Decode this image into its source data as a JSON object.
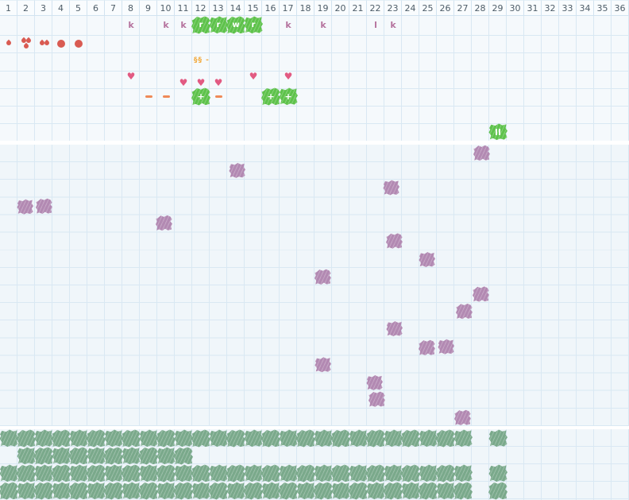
{
  "colors": {
    "grid_line": "#d9e8f3",
    "section_bg": "#f0f6fa",
    "header_text": "#4e5d68",
    "bright_green": "#5ec24b",
    "sage_green": "#7aa98b",
    "creature_purple": "#b289b2",
    "letter_mauve": "#b5739e",
    "blood_red": "#d95b52",
    "heart_pink": "#e25a82",
    "currency_orange": "#f2a93b",
    "minus_orange": "#ef8a58"
  },
  "header": {
    "columns": [
      "1",
      "2",
      "3",
      "4",
      "5",
      "6",
      "7",
      "8",
      "9",
      "10",
      "11",
      "12",
      "13",
      "14",
      "15",
      "16",
      "17",
      "18",
      "19",
      "20",
      "21",
      "22",
      "23",
      "24",
      "25",
      "26",
      "27",
      "28",
      "29",
      "30",
      "31",
      "32",
      "33",
      "34",
      "35",
      "36"
    ]
  },
  "status_rows": {
    "letters": [
      {
        "col": 8,
        "char": "k"
      },
      {
        "col": 10,
        "char": "k"
      },
      {
        "col": 11,
        "char": "k"
      },
      {
        "col": 17,
        "char": "k"
      },
      {
        "col": 19,
        "char": "k"
      },
      {
        "col": 22,
        "char": "l"
      },
      {
        "col": 23,
        "char": "k"
      }
    ],
    "units": [
      {
        "col": 12,
        "letter": "r"
      },
      {
        "col": 13,
        "letter": "r"
      },
      {
        "col": 14,
        "letter": "w"
      },
      {
        "col": 15,
        "letter": "r"
      }
    ],
    "drops": [
      {
        "col": 1,
        "type": "drop-single"
      },
      {
        "col": 2,
        "type": "drop-triple"
      },
      {
        "col": 3,
        "type": "drop-double"
      },
      {
        "col": 4,
        "type": "dot"
      },
      {
        "col": 5,
        "type": "dot"
      }
    ],
    "currency": {
      "col": 12,
      "text": "§§ -"
    },
    "hearts": [
      {
        "col": 8,
        "raised": true
      },
      {
        "col": 11,
        "raised": false
      },
      {
        "col": 12,
        "raised": false
      },
      {
        "col": 13,
        "raised": false
      },
      {
        "col": 15,
        "raised": true
      },
      {
        "col": 17,
        "raised": true
      }
    ],
    "modifiers": [
      {
        "col": 9,
        "type": "minus"
      },
      {
        "col": 10,
        "type": "minus"
      },
      {
        "col": 12,
        "type": "plus"
      },
      {
        "col": 13,
        "type": "minus"
      },
      {
        "col": 16,
        "type": "plus"
      },
      {
        "col": 17,
        "type": "plus"
      }
    ],
    "pause_button": {
      "col": 29,
      "glyph": "II"
    }
  },
  "field": {
    "creatures": [
      {
        "col": 28,
        "row": 1
      },
      {
        "col": 14,
        "row": 2
      },
      {
        "col": 23,
        "row": 3
      },
      {
        "col": 2,
        "row": 4
      },
      {
        "col": 3,
        "row": 4
      },
      {
        "col": 10,
        "row": 5
      },
      {
        "col": 23,
        "row": 6
      },
      {
        "col": 25,
        "row": 7
      },
      {
        "col": 19,
        "row": 8
      },
      {
        "col": 28,
        "row": 9
      },
      {
        "col": 27,
        "row": 10
      },
      {
        "col": 23,
        "row": 11
      },
      {
        "col": 25,
        "row": 12
      },
      {
        "col": 26,
        "row": 12
      },
      {
        "col": 19,
        "row": 13
      },
      {
        "col": 22,
        "row": 14
      },
      {
        "col": 22,
        "row": 15
      },
      {
        "col": 27,
        "row": 16
      }
    ]
  },
  "forest": {
    "rows": [
      {
        "row": 1,
        "cols": [
          1,
          2,
          3,
          4,
          5,
          6,
          7,
          8,
          9,
          10,
          11,
          12,
          13,
          14,
          15,
          16,
          17,
          18,
          19,
          20,
          21,
          22,
          23,
          24,
          25,
          26,
          27,
          29
        ]
      },
      {
        "row": 2,
        "cols": [
          2,
          3,
          4,
          5,
          6,
          7,
          8,
          9,
          10,
          11
        ]
      },
      {
        "row": 3,
        "cols": [
          1,
          2,
          3,
          4,
          5,
          6,
          7,
          8,
          9,
          10,
          11,
          12,
          13,
          14,
          15,
          16,
          17,
          18,
          19,
          20,
          21,
          22,
          23,
          24,
          25,
          26,
          27,
          29
        ]
      },
      {
        "row": 4,
        "cols": [
          1,
          2,
          3,
          4,
          5,
          6,
          7,
          8,
          9,
          10,
          11,
          12,
          13,
          14,
          15,
          16,
          17,
          18,
          19,
          20,
          21,
          22,
          23,
          24,
          25,
          26,
          27,
          29
        ]
      }
    ]
  }
}
